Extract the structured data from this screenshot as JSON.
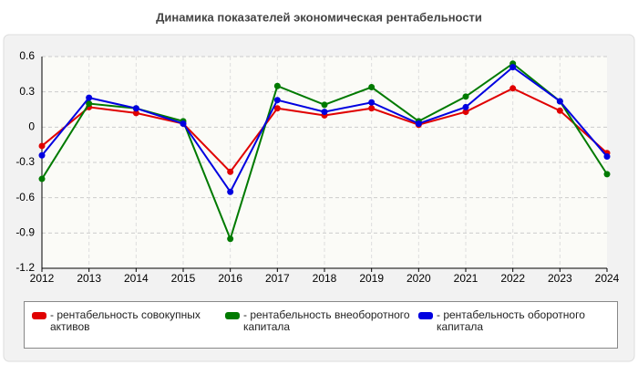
{
  "chart_data": {
    "type": "line",
    "title": "Динамика показателей экономическая рентабельности",
    "categories": [
      "2012",
      "2013",
      "2014",
      "2015",
      "2016",
      "2017",
      "2018",
      "2019",
      "2020",
      "2021",
      "2022",
      "2023",
      "2024"
    ],
    "series": [
      {
        "name": "- рентабельность совокупных активов",
        "color": "#e00000",
        "values": [
          -0.16,
          0.17,
          0.12,
          0.03,
          -0.38,
          0.16,
          0.1,
          0.16,
          0.02,
          0.13,
          0.33,
          0.14,
          -0.22
        ]
      },
      {
        "name": "- рентабельность внеоборотного капитала",
        "color": "#007a00",
        "values": [
          -0.44,
          0.2,
          0.16,
          0.05,
          -0.95,
          0.35,
          0.19,
          0.34,
          0.05,
          0.26,
          0.54,
          0.22,
          -0.4
        ]
      },
      {
        "name": "- рентабельность оборотного капитала",
        "color": "#0000e0",
        "values": [
          -0.24,
          0.25,
          0.16,
          0.03,
          -0.55,
          0.23,
          0.13,
          0.21,
          0.03,
          0.17,
          0.51,
          0.22,
          -0.25
        ]
      }
    ],
    "ylim": [
      -1.2,
      0.6
    ],
    "yticks": [
      -1.2,
      -0.9,
      -0.6,
      -0.3,
      0,
      0.3,
      0.6
    ],
    "grid": true
  }
}
